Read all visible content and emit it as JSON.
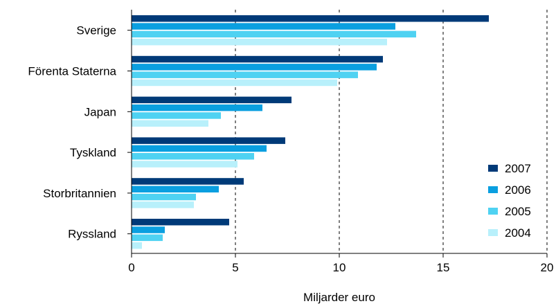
{
  "chart_data": {
    "type": "bar",
    "orientation": "horizontal",
    "categories": [
      "Sverige",
      "Förenta Staterna",
      "Japan",
      "Tyskland",
      "Storbritannien",
      "Ryssland"
    ],
    "series": [
      {
        "name": "2007",
        "color": "#003a78",
        "values": [
          17.2,
          12.1,
          7.7,
          7.4,
          5.4,
          4.7
        ]
      },
      {
        "name": "2006",
        "color": "#0a9fe0",
        "values": [
          12.7,
          11.8,
          6.3,
          6.5,
          4.2,
          1.6
        ]
      },
      {
        "name": "2005",
        "color": "#4fd2f2",
        "values": [
          13.7,
          10.9,
          4.3,
          5.9,
          3.1,
          1.5
        ]
      },
      {
        "name": "2004",
        "color": "#b8f0fb",
        "values": [
          12.3,
          9.9,
          3.7,
          5.1,
          3.0,
          0.5
        ]
      }
    ],
    "xlabel": "Miljarder euro",
    "xlim": [
      0,
      20
    ],
    "xticks": [
      "0",
      "5",
      "10",
      "15",
      "20"
    ],
    "xtick_values": [
      0,
      5,
      10,
      15,
      20
    ],
    "grid": "vertical dashed at major ticks",
    "legend_position": "bottom-right"
  }
}
